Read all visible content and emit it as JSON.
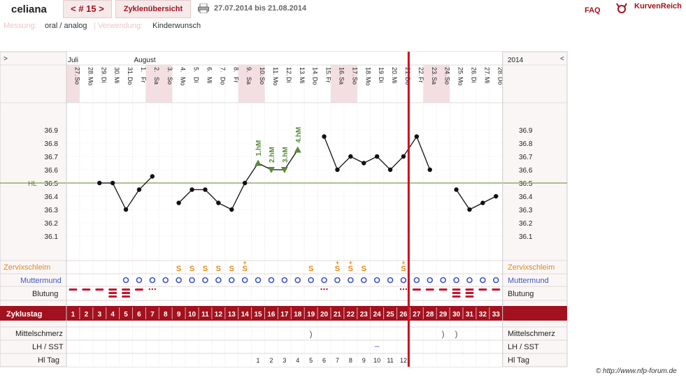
{
  "header": {
    "user": "celiana",
    "cycle_tab": "< # 15 >",
    "overview_tab": "Zyklenübersicht",
    "date_range": "27.07.2014 bis 21.08.2014",
    "faq": "FAQ",
    "brand": "KurvenReich"
  },
  "meta": {
    "messung_label": "Messung:",
    "messung_value": "oral / analog",
    "verwendung_label": "Verwendung:",
    "verwendung_value": "Kinderwunsch"
  },
  "footer": "© http://www.nfp-forum.de",
  "chart_data": {
    "type": "line",
    "nav_left": ">",
    "nav_right": "<",
    "year": "2014",
    "months": [
      {
        "label": "Juli",
        "col": 0
      },
      {
        "label": "August",
        "col": 5
      }
    ],
    "days": [
      {
        "d": "27.",
        "w": "So"
      },
      {
        "d": "28.",
        "w": "Mo"
      },
      {
        "d": "29.",
        "w": "Di"
      },
      {
        "d": "30.",
        "w": "Mi"
      },
      {
        "d": "31.",
        "w": "Do"
      },
      {
        "d": "1.",
        "w": "Fr"
      },
      {
        "d": "2.",
        "w": "Sa"
      },
      {
        "d": "3.",
        "w": "So"
      },
      {
        "d": "4.",
        "w": "Mo"
      },
      {
        "d": "5.",
        "w": "Di"
      },
      {
        "d": "6.",
        "w": "Mi"
      },
      {
        "d": "7.",
        "w": "Do"
      },
      {
        "d": "8.",
        "w": "Fr"
      },
      {
        "d": "9.",
        "w": "Sa"
      },
      {
        "d": "10.",
        "w": "So"
      },
      {
        "d": "11.",
        "w": "Mo"
      },
      {
        "d": "12.",
        "w": "Di"
      },
      {
        "d": "13.",
        "w": "Mi"
      },
      {
        "d": "14.",
        "w": "Do"
      },
      {
        "d": "15.",
        "w": "Fr"
      },
      {
        "d": "16.",
        "w": "Sa"
      },
      {
        "d": "17.",
        "w": "So"
      },
      {
        "d": "18.",
        "w": "Mo"
      },
      {
        "d": "19.",
        "w": "Di"
      },
      {
        "d": "20.",
        "w": "Mi"
      },
      {
        "d": "21.",
        "w": "Do"
      },
      {
        "d": "22.",
        "w": "Fr"
      },
      {
        "d": "23.",
        "w": "Sa"
      },
      {
        "d": "24.",
        "w": "So"
      },
      {
        "d": "25.",
        "w": "Mo"
      },
      {
        "d": "26.",
        "w": "Di"
      },
      {
        "d": "27.",
        "w": "Mi"
      },
      {
        "d": "28.",
        "w": "Do"
      }
    ],
    "weekend_cols": [
      0,
      6,
      7,
      13,
      14,
      20,
      21,
      27,
      28
    ],
    "ylim": [
      36.0,
      37.0
    ],
    "yticks": [
      36.1,
      36.2,
      36.3,
      36.4,
      36.5,
      36.6,
      36.7,
      36.8,
      36.9
    ],
    "cover_line": {
      "label": "HL",
      "value": 36.5
    },
    "series": [
      {
        "values": [
          null,
          null,
          36.5,
          36.5,
          36.3,
          36.45,
          36.55,
          null,
          36.35,
          36.45,
          36.45,
          36.35,
          36.3,
          36.5,
          36.65,
          36.6,
          36.6,
          36.75,
          null,
          36.85,
          36.6,
          36.7,
          36.65,
          36.7,
          36.6,
          36.7,
          36.85,
          36.6,
          null,
          36.45,
          36.3,
          36.35,
          36.4
        ],
        "highs": [
          {
            "col": 14,
            "label": "1.hM"
          },
          {
            "col": 15,
            "label": "2.hM"
          },
          {
            "col": 16,
            "label": "3.hM"
          },
          {
            "col": 17,
            "label": "4.hM"
          }
        ]
      }
    ],
    "evaluation_col": 25,
    "rows": {
      "zervix_label": "Zervixschleim",
      "zervix": [
        "",
        "",
        "",
        "",
        "",
        "",
        "",
        "",
        "S",
        "S",
        "S",
        "S",
        "S",
        "S+",
        "",
        "",
        "",
        "",
        "S",
        "",
        "S+",
        "S+",
        "S",
        "",
        "",
        "S+",
        "",
        "",
        "",
        "",
        "",
        "",
        ""
      ],
      "muttermund_label": "Muttermund",
      "muttermund": [
        "",
        "",
        "",
        "",
        "o",
        "o",
        "o",
        "o",
        "o",
        "o",
        "o",
        "o",
        "o",
        "o",
        "o",
        "o",
        "o",
        "o",
        "o",
        "o",
        "o",
        "o",
        "o",
        "o",
        "o",
        "o",
        "o",
        "o",
        "o",
        "o",
        "o",
        "o",
        "o"
      ],
      "blutung_label": "Blutung",
      "blutung": [
        "light",
        "light",
        "light",
        "heavy",
        "heavy",
        "light",
        "spot",
        "",
        "",
        "",
        "",
        "",
        "",
        "",
        "",
        "",
        "",
        "",
        "",
        "spot",
        "",
        "",
        "",
        "",
        "",
        "spot",
        "light",
        "light",
        "light",
        "heavy",
        "heavy",
        "light",
        "light"
      ],
      "zyklustag_label": "Zyklustag",
      "zyklustag": [
        1,
        2,
        3,
        4,
        5,
        6,
        7,
        8,
        9,
        10,
        11,
        12,
        13,
        14,
        15,
        16,
        17,
        18,
        19,
        20,
        21,
        22,
        23,
        24,
        25,
        26,
        27,
        28,
        29,
        30,
        31,
        32,
        33
      ],
      "mittelschmerz_label": "Mittelschmerz",
      "mittelschmerz": [
        "",
        "",
        "",
        "",
        "",
        "",
        "",
        "",
        "",
        "",
        "",
        "",
        "",
        "",
        "",
        "",
        "",
        "",
        ")",
        "",
        "",
        "",
        "",
        "",
        "",
        "",
        "",
        "",
        ")",
        ")",
        "",
        "",
        ""
      ],
      "lh_label": "LH / SST",
      "lh": [
        "",
        "",
        "",
        "",
        "",
        "",
        "",
        "",
        "",
        "",
        "",
        "",
        "",
        "",
        "",
        "",
        "",
        "",
        "",
        "",
        "",
        "",
        "",
        "–",
        "",
        "",
        "",
        "",
        "",
        "",
        "",
        "",
        ""
      ],
      "hl_label": "Hl Tag",
      "hl": [
        "",
        "",
        "",
        "",
        "",
        "",
        "",
        "",
        "",
        "",
        "",
        "",
        "",
        "",
        1,
        2,
        3,
        4,
        5,
        6,
        7,
        8,
        9,
        10,
        11,
        12,
        "",
        "",
        "",
        "",
        "",
        "",
        ""
      ]
    }
  }
}
